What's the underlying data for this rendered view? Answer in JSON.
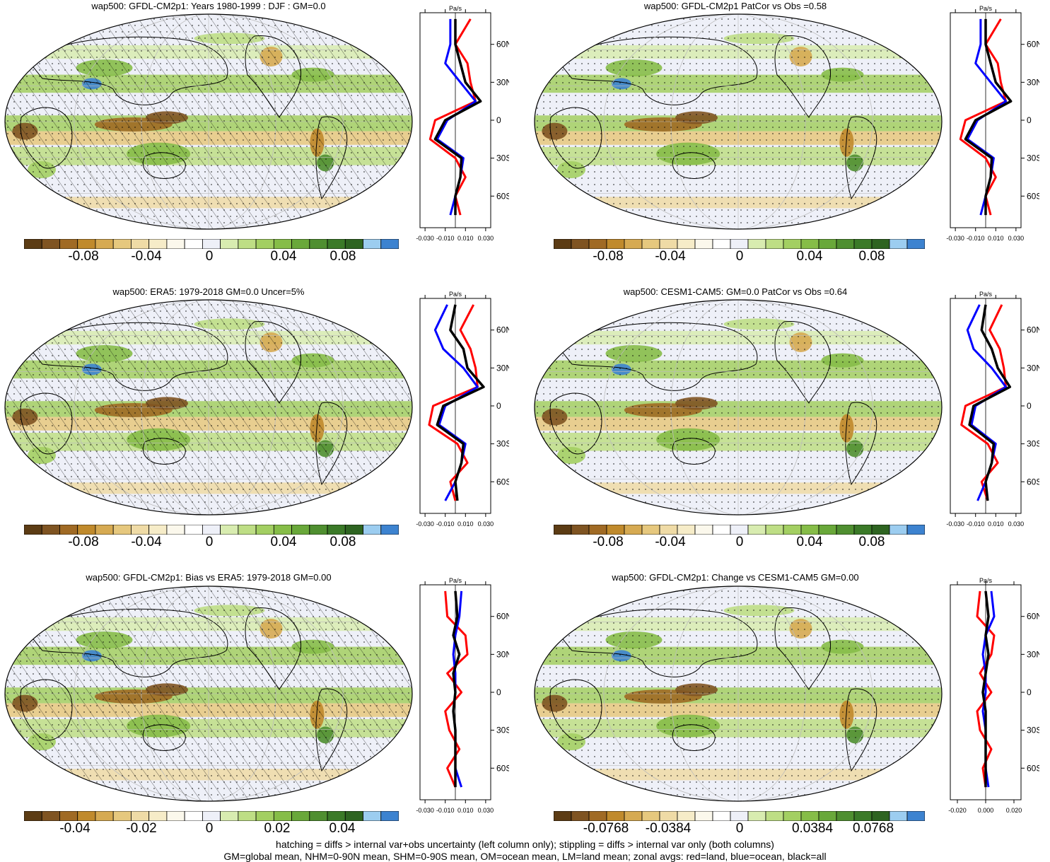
{
  "palette": [
    "#5c3c14",
    "#7f5422",
    "#a06a24",
    "#c08a2c",
    "#d6aa52",
    "#e6c87e",
    "#efdba6",
    "#f6ecc8",
    "#fbf8ec",
    "#ffffff",
    "#eef0f8",
    "#d8ecb0",
    "#bede85",
    "#a3cf62",
    "#86bd48",
    "#69a83a",
    "#4f8f30",
    "#3b7a28",
    "#2e6421",
    "#9ccdf0",
    "#3d83d0"
  ],
  "zonal_colors": {
    "land": "#ff0000",
    "ocean": "#0000ff",
    "all": "#000000"
  },
  "panels": [
    {
      "title": "wap500: GFDL-CM2p1: Years 1980-1999 : DJF : GM=0.0",
      "colorbar_labels": [
        "-0.08",
        "-0.04",
        "0",
        "0.04",
        "0.08"
      ],
      "zonal": {
        "unit": "Pa/s",
        "x_ticks": [
          "-0.030",
          "-0.010",
          "0.010",
          "0.030"
        ],
        "lat_labels": [
          "60N",
          "30N",
          "0",
          "30S",
          "60S"
        ]
      },
      "hatched": true
    },
    {
      "title": "wap500: GFDL-CM2p1 PatCor vs Obs =0.58",
      "colorbar_labels": [
        "-0.08",
        "-0.04",
        "0",
        "0.04",
        "0.08"
      ],
      "zonal": {
        "unit": "Pa/s",
        "x_ticks": [
          "-0.030",
          "-0.010",
          "0.010",
          "0.030"
        ],
        "lat_labels": [
          "60N",
          "30N",
          "0",
          "30S",
          "60S"
        ]
      },
      "hatched": false
    },
    {
      "title": "wap500: ERA5: 1979-2018 GM=0.0 Uncer=5%",
      "colorbar_labels": [
        "-0.08",
        "-0.04",
        "0",
        "0.04",
        "0.08"
      ],
      "zonal": {
        "unit": "Pa/s",
        "x_ticks": [
          "-0.030",
          "-0.010",
          "0.010",
          "0.030"
        ],
        "lat_labels": [
          "60N",
          "30N",
          "0",
          "30S",
          "60S"
        ]
      },
      "hatched": true
    },
    {
      "title": "wap500: CESM1-CAM5: GM=0.0 PatCor vs Obs =0.64",
      "colorbar_labels": [
        "-0.08",
        "-0.04",
        "0",
        "0.04",
        "0.08"
      ],
      "zonal": {
        "unit": "Pa/s",
        "x_ticks": [
          "-0.030",
          "-0.010",
          "0.010",
          "0.030"
        ],
        "lat_labels": [
          "60N",
          "30N",
          "0",
          "30S",
          "60S"
        ]
      },
      "hatched": false
    },
    {
      "title": "wap500: GFDL-CM2p1: Bias vs ERA5: 1979-2018 GM=0.00",
      "colorbar_labels": [
        "-0.04",
        "-0.02",
        "0",
        "0.02",
        "0.04"
      ],
      "zonal": {
        "unit": "Pa/s",
        "x_ticks": [
          "-0.030",
          "-0.010",
          "0.010",
          "0.030"
        ],
        "lat_labels": [
          "60N",
          "30N",
          "0",
          "30S",
          "60S"
        ]
      },
      "hatched": true
    },
    {
      "title": "wap500: GFDL-CM2p1: Change vs CESM1-CAM5 GM=0.00",
      "colorbar_labels": [
        "-0.0768",
        "-0.0384",
        "0",
        "0.0384",
        "0.0768"
      ],
      "zonal": {
        "unit": "Pa/s",
        "x_ticks": [
          "-0.020",
          "0.000",
          "0.020"
        ],
        "lat_labels": [
          "60N",
          "30N",
          "0",
          "30S",
          "60S"
        ]
      },
      "hatched": false
    }
  ],
  "footer": {
    "line1": "hatching = diffs > internal var+obs uncertainty (left column only); stippling = diffs > internal var only (both columns)",
    "line2": "GM=global mean, NHM=0-90N mean, SHM=0-90S mean, OM=ocean mean, LM=land mean; zonal avgs: red=land, blue=ocean, black=all"
  },
  "chart_data": [
    {
      "type": "heatmap",
      "title": "wap500: GFDL-CM2p1: Years 1980-1999 : DJF : GM=0.0",
      "colorbar_ticks": [
        -0.08,
        -0.04,
        0,
        0.04,
        0.08
      ],
      "zonal_profile": {
        "x_ticks": [
          -0.03,
          -0.01,
          0.01,
          0.03
        ],
        "unit": "Pa/s",
        "lat": [
          80,
          60,
          45,
          30,
          15,
          0,
          -15,
          -30,
          -45,
          -60,
          -75
        ],
        "all": [
          0.0,
          0.0,
          0.005,
          0.01,
          0.025,
          -0.01,
          -0.02,
          0.006,
          0.005,
          0.0,
          0.0
        ],
        "land": [
          0.015,
          0.0,
          0.012,
          0.015,
          0.02,
          -0.02,
          -0.025,
          0.0,
          0.01,
          0.0,
          0.005
        ],
        "ocean": [
          -0.005,
          -0.005,
          -0.01,
          0.005,
          0.02,
          -0.008,
          -0.018,
          0.008,
          0.005,
          0.0,
          -0.005
        ]
      }
    },
    {
      "type": "heatmap",
      "title": "wap500: GFDL-CM2p1 PatCor vs Obs =0.58",
      "colorbar_ticks": [
        -0.08,
        -0.04,
        0,
        0.04,
        0.08
      ],
      "zonal_profile": {
        "x_ticks": [
          -0.03,
          -0.01,
          0.01,
          0.03
        ],
        "unit": "Pa/s",
        "lat": [
          80,
          60,
          45,
          30,
          15,
          0,
          -15,
          -30,
          -45,
          -60,
          -75
        ],
        "all": [
          0.0,
          0.0,
          0.005,
          0.01,
          0.025,
          -0.01,
          -0.02,
          0.006,
          0.005,
          0.0,
          0.0
        ],
        "land": [
          0.015,
          0.0,
          0.012,
          0.015,
          0.02,
          -0.02,
          -0.025,
          0.0,
          0.01,
          0.0,
          0.005
        ],
        "ocean": [
          -0.005,
          -0.005,
          -0.01,
          0.005,
          0.02,
          -0.008,
          -0.018,
          0.008,
          0.005,
          0.0,
          -0.005
        ]
      }
    },
    {
      "type": "heatmap",
      "title": "wap500: ERA5: 1979-2018 GM=0.0 Uncer=5%",
      "colorbar_ticks": [
        -0.08,
        -0.04,
        0,
        0.04,
        0.08
      ],
      "zonal_profile": {
        "x_ticks": [
          -0.03,
          -0.01,
          0.01,
          0.03
        ],
        "unit": "Pa/s",
        "lat": [
          80,
          60,
          45,
          30,
          15,
          0,
          -15,
          -30,
          -45,
          -60,
          -75
        ],
        "all": [
          0.0,
          -0.005,
          0.008,
          0.012,
          0.028,
          -0.012,
          -0.018,
          0.008,
          0.006,
          0.0,
          0.002
        ],
        "land": [
          0.018,
          0.005,
          0.015,
          0.02,
          0.022,
          -0.022,
          -0.026,
          0.002,
          0.012,
          -0.005,
          0.0
        ],
        "ocean": [
          -0.008,
          -0.02,
          -0.012,
          0.008,
          0.022,
          -0.01,
          -0.016,
          0.01,
          0.006,
          0.0,
          -0.01
        ]
      }
    },
    {
      "type": "heatmap",
      "title": "wap500: CESM1-CAM5: GM=0.0 PatCor vs Obs =0.64",
      "colorbar_ticks": [
        -0.08,
        -0.04,
        0,
        0.04,
        0.08
      ],
      "zonal_profile": {
        "x_ticks": [
          -0.03,
          -0.01,
          0.01,
          0.03
        ],
        "unit": "Pa/s",
        "lat": [
          80,
          60,
          45,
          30,
          15,
          0,
          -15,
          -30,
          -45,
          -60,
          -75
        ],
        "all": [
          0.0,
          -0.004,
          0.006,
          0.012,
          0.024,
          -0.012,
          -0.016,
          0.008,
          0.006,
          0.0,
          0.002
        ],
        "land": [
          0.016,
          0.004,
          0.014,
          0.018,
          0.02,
          -0.02,
          -0.024,
          0.002,
          0.012,
          -0.004,
          0.002
        ],
        "ocean": [
          -0.006,
          -0.018,
          -0.012,
          0.006,
          0.02,
          -0.01,
          -0.014,
          0.01,
          0.006,
          0.0,
          -0.008
        ]
      }
    },
    {
      "type": "heatmap",
      "title": "wap500: GFDL-CM2p1: Bias vs ERA5: 1979-2018 GM=0.00",
      "colorbar_ticks": [
        -0.04,
        -0.02,
        0,
        0.02,
        0.04
      ],
      "zonal_profile": {
        "x_ticks": [
          -0.03,
          -0.01,
          0.01,
          0.03
        ],
        "unit": "Pa/s",
        "lat": [
          80,
          60,
          45,
          30,
          15,
          0,
          -15,
          -30,
          -45,
          -60,
          -75
        ],
        "all": [
          0.0,
          0.002,
          -0.002,
          0.004,
          -0.002,
          0.0,
          -0.002,
          0.0,
          0.0,
          0.0,
          0.0
        ],
        "land": [
          -0.01,
          -0.008,
          0.01,
          0.012,
          -0.008,
          0.006,
          -0.01,
          -0.006,
          0.004,
          -0.008,
          0.0
        ],
        "ocean": [
          0.006,
          0.004,
          0.0,
          -0.002,
          0.0,
          0.0,
          -0.002,
          0.0,
          0.0,
          0.0,
          0.006
        ]
      }
    },
    {
      "type": "heatmap",
      "title": "wap500: GFDL-CM2p1: Change vs CESM1-CAM5 GM=0.00",
      "colorbar_ticks": [
        -0.0768,
        -0.0384,
        0,
        0.0384,
        0.0768
      ],
      "zonal_profile": {
        "x_ticks": [
          -0.02,
          0.0,
          0.02
        ],
        "unit": "Pa/s",
        "lat": [
          80,
          60,
          45,
          30,
          15,
          0,
          -15,
          -30,
          -45,
          -60,
          -75
        ],
        "all": [
          0.0,
          0.002,
          0.0,
          0.002,
          0.0,
          -0.002,
          0.0,
          0.0,
          0.0,
          0.0,
          0.0
        ],
        "land": [
          -0.004,
          -0.006,
          0.006,
          0.004,
          -0.004,
          0.004,
          -0.006,
          -0.004,
          0.004,
          -0.002,
          0.0
        ],
        "ocean": [
          0.004,
          0.006,
          0.0,
          -0.002,
          0.0,
          0.0,
          -0.002,
          0.0,
          0.0,
          0.0,
          0.002
        ]
      }
    }
  ]
}
